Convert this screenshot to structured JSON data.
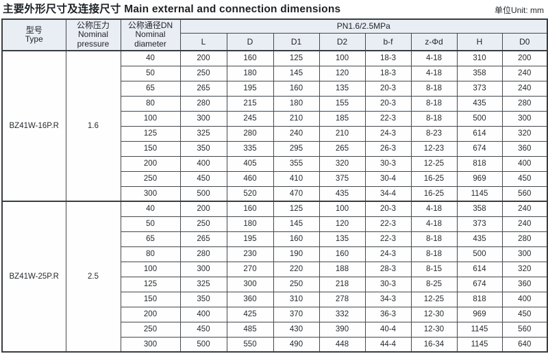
{
  "page": {
    "title": "主要外形尺寸及连接尺寸 Main external and connection dimensions",
    "unit": "单位Unit: mm"
  },
  "table": {
    "headers": {
      "type_zh": "型号",
      "type_en": "Type",
      "pressure_zh": "公称压力",
      "pressure_en1": "Nominal",
      "pressure_en2": "pressure",
      "dn_zh": "公称通径DN",
      "dn_en1": "Nominal",
      "dn_en2": "diameter",
      "pn_group": "PN1.6/2.5MPa",
      "dims": [
        "L",
        "D",
        "D1",
        "D2",
        "b-f",
        "z-Φd",
        "H",
        "D0"
      ]
    },
    "groups": [
      {
        "type": "BZ41W-16P.R",
        "pressure": "1.6",
        "rows": [
          {
            "dn": "40",
            "values": [
              "200",
              "160",
              "125",
              "100",
              "18-3",
              "4-18",
              "310",
              "200"
            ]
          },
          {
            "dn": "50",
            "values": [
              "250",
              "180",
              "145",
              "120",
              "18-3",
              "4-18",
              "358",
              "240"
            ]
          },
          {
            "dn": "65",
            "values": [
              "265",
              "195",
              "160",
              "135",
              "20-3",
              "8-18",
              "373",
              "240"
            ]
          },
          {
            "dn": "80",
            "values": [
              "280",
              "215",
              "180",
              "155",
              "20-3",
              "8-18",
              "435",
              "280"
            ]
          },
          {
            "dn": "100",
            "values": [
              "300",
              "245",
              "210",
              "185",
              "22-3",
              "8-18",
              "500",
              "300"
            ]
          },
          {
            "dn": "125",
            "values": [
              "325",
              "280",
              "240",
              "210",
              "24-3",
              "8-23",
              "614",
              "320"
            ]
          },
          {
            "dn": "150",
            "values": [
              "350",
              "335",
              "295",
              "265",
              "26-3",
              "12-23",
              "674",
              "360"
            ]
          },
          {
            "dn": "200",
            "values": [
              "400",
              "405",
              "355",
              "320",
              "30-3",
              "12-25",
              "818",
              "400"
            ]
          },
          {
            "dn": "250",
            "values": [
              "450",
              "460",
              "410",
              "375",
              "30-4",
              "16-25",
              "969",
              "450"
            ]
          },
          {
            "dn": "300",
            "values": [
              "500",
              "520",
              "470",
              "435",
              "34-4",
              "16-25",
              "1145",
              "560"
            ]
          }
        ]
      },
      {
        "type": "BZ41W-25P.R",
        "pressure": "2.5",
        "rows": [
          {
            "dn": "40",
            "values": [
              "200",
              "160",
              "125",
              "100",
              "20-3",
              "4-18",
              "358",
              "240"
            ]
          },
          {
            "dn": "50",
            "values": [
              "250",
              "180",
              "145",
              "120",
              "22-3",
              "4-18",
              "373",
              "240"
            ]
          },
          {
            "dn": "65",
            "values": [
              "265",
              "195",
              "160",
              "135",
              "22-3",
              "8-18",
              "435",
              "280"
            ]
          },
          {
            "dn": "80",
            "values": [
              "280",
              "230",
              "190",
              "160",
              "24-3",
              "8-18",
              "500",
              "300"
            ]
          },
          {
            "dn": "100",
            "values": [
              "300",
              "270",
              "220",
              "188",
              "28-3",
              "8-15",
              "614",
              "320"
            ]
          },
          {
            "dn": "125",
            "values": [
              "325",
              "300",
              "250",
              "218",
              "30-3",
              "8-25",
              "674",
              "360"
            ]
          },
          {
            "dn": "150",
            "values": [
              "350",
              "360",
              "310",
              "278",
              "34-3",
              "12-25",
              "818",
              "400"
            ]
          },
          {
            "dn": "200",
            "values": [
              "400",
              "425",
              "370",
              "332",
              "36-3",
              "12-30",
              "969",
              "450"
            ]
          },
          {
            "dn": "250",
            "values": [
              "450",
              "485",
              "430",
              "390",
              "40-4",
              "12-30",
              "1145",
              "560"
            ]
          },
          {
            "dn": "300",
            "values": [
              "500",
              "550",
              "490",
              "448",
              "44-4",
              "16-34",
              "1145",
              "640"
            ]
          }
        ]
      }
    ]
  }
}
